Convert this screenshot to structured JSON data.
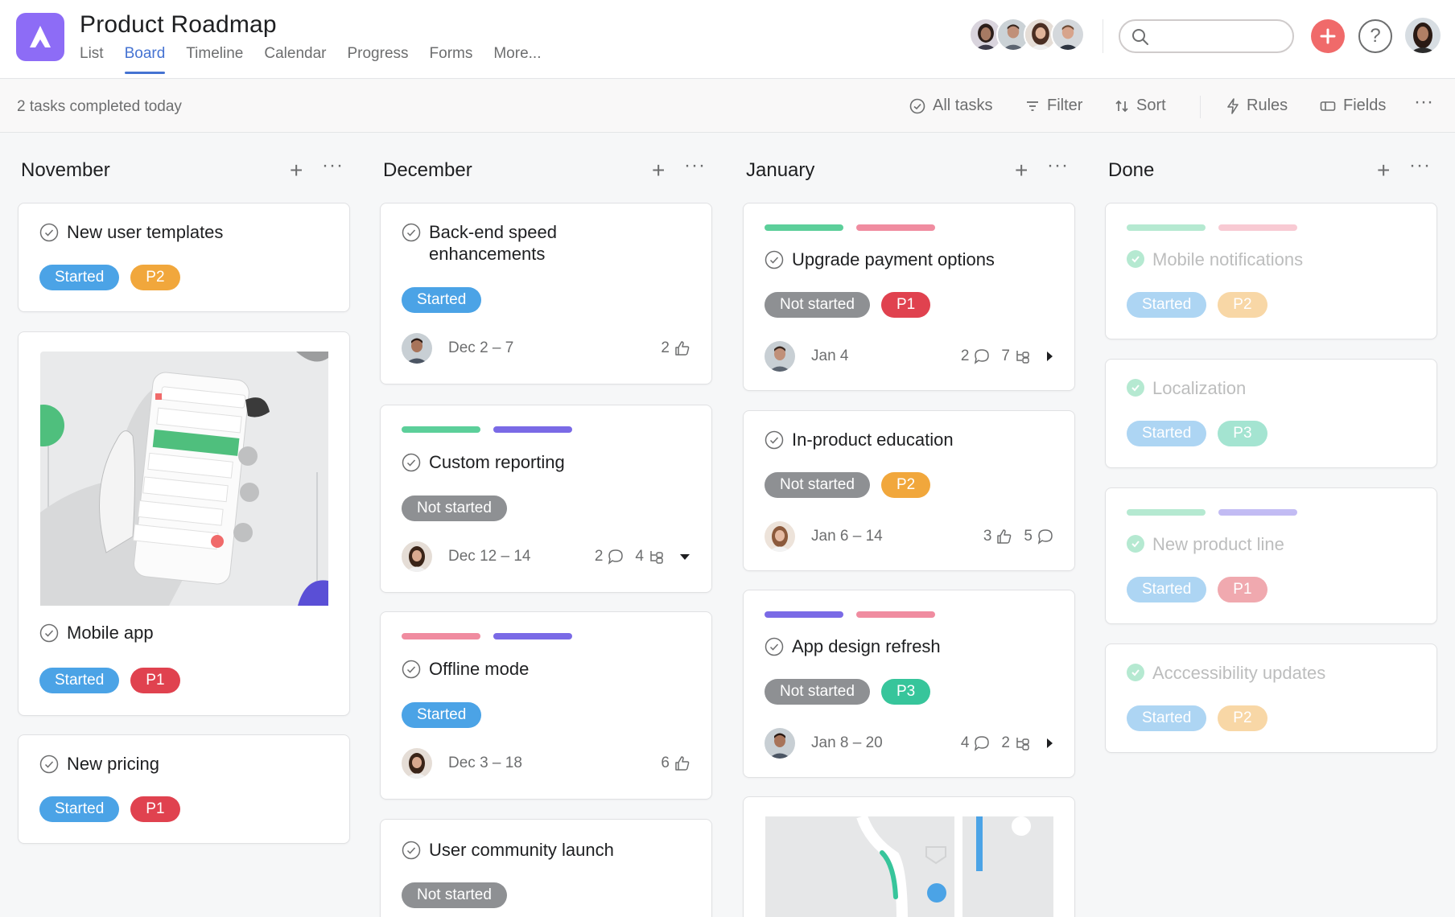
{
  "header": {
    "title": "Product Roadmap",
    "tabs": [
      "List",
      "Board",
      "Timeline",
      "Calendar",
      "Progress",
      "Forms",
      "More..."
    ],
    "active_tab": "Board",
    "search_placeholder": ""
  },
  "toolbar": {
    "completed_text": "2 tasks completed today",
    "all_tasks": "All tasks",
    "filter": "Filter",
    "sort": "Sort",
    "rules": "Rules",
    "fields": "Fields",
    "more": "···"
  },
  "colors": {
    "accent": "#4573d2",
    "started": "#4ba3e6",
    "not_started": "#8e9093",
    "p1": "#e0424f",
    "p2": "#f1a73c",
    "p3": "#37c59b",
    "green_bar": "#5ccf9a",
    "pink_bar": "#f08ca0",
    "purple_bar": "#7a6ae6"
  },
  "columns": [
    {
      "title": "November",
      "cards": [
        {
          "title": "New user templates",
          "status": "Started",
          "priority": "P2"
        },
        {
          "title": "Mobile app",
          "status": "Started",
          "priority": "P1",
          "image": "phone-app-mockup"
        },
        {
          "title": "New pricing",
          "status": "Started",
          "priority": "P1"
        }
      ]
    },
    {
      "title": "December",
      "cards": [
        {
          "title": "Back-end speed enhancements",
          "status": "Started",
          "date": "Dec 2 – 7",
          "likes": "2"
        },
        {
          "title": "Custom reporting",
          "status": "Not started",
          "date": "Dec 12 – 14",
          "comments": "2",
          "subtasks": "4"
        },
        {
          "title": "Offline mode",
          "status": "Started",
          "date": "Dec 3 – 18",
          "likes": "6"
        },
        {
          "title": "User community launch",
          "status": "Not started"
        }
      ]
    },
    {
      "title": "January",
      "cards": [
        {
          "title": "Upgrade payment options",
          "status": "Not started",
          "priority": "P1",
          "date": "Jan 4",
          "comments": "2",
          "subtasks": "7"
        },
        {
          "title": "In-product education",
          "status": "Not started",
          "priority": "P2",
          "date": "Jan 6 – 14",
          "likes": "3",
          "comments": "5"
        },
        {
          "title": "App design refresh",
          "status": "Not started",
          "priority": "P3",
          "date": "Jan 8 – 20",
          "comments": "4",
          "subtasks": "2"
        },
        {
          "title": "",
          "image": "map-thumbnail"
        }
      ]
    },
    {
      "title": "Done",
      "cards": [
        {
          "title": "Mobile notifications",
          "status": "Started",
          "priority": "P2"
        },
        {
          "title": "Localization",
          "status": "Started",
          "priority": "P3"
        },
        {
          "title": "New product line",
          "status": "Started",
          "priority": "P1"
        },
        {
          "title": "Acccessibility updates",
          "status": "Started",
          "priority": "P2"
        }
      ]
    }
  ],
  "icons": [
    "app-logo-icon",
    "search-icon",
    "plus-icon",
    "help-icon",
    "check-circle-icon",
    "filter-icon",
    "sort-icon",
    "lightning-icon",
    "fields-icon",
    "thumbs-up-icon",
    "comment-icon",
    "subtask-icon",
    "caret-icon"
  ]
}
